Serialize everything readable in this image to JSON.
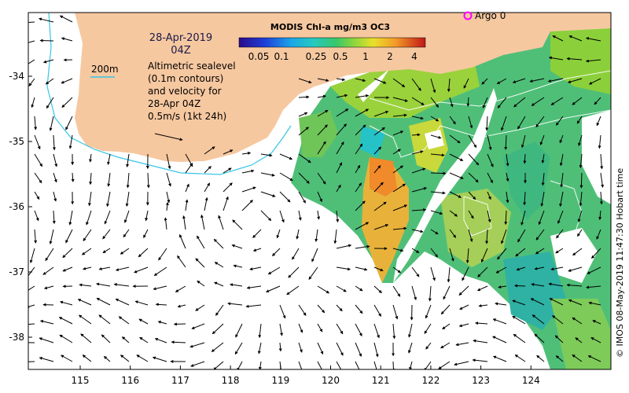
{
  "map": {
    "date_title": "28-Apr-2019",
    "time_title": "04Z",
    "contour_label": "200m",
    "legend_lines": [
      "Altimetric sealevel",
      "(0.1m contours)",
      "and velocity for",
      "28-Apr 04Z",
      "0.5m/s (1kt 24h)"
    ],
    "argo_label": "Argo 0",
    "argo_color": "#ff00ff",
    "credit": "© IMOS 08-May-2019 11:47:30 Hobart time",
    "land_color": "#f6c8a0",
    "contour_color": "#36c6e6",
    "x_ticks": [
      "115",
      "116",
      "117",
      "118",
      "119",
      "120",
      "121",
      "122",
      "123",
      "124"
    ],
    "y_ticks": [
      "-34",
      "-35",
      "-36",
      "-37",
      "-38"
    ]
  },
  "colorbar": {
    "title": "MODIS Chl-a mg/m3 OC3",
    "labels": [
      "0.05",
      "0.1",
      "0.25",
      "0.5",
      "1",
      "2",
      "4"
    ]
  }
}
